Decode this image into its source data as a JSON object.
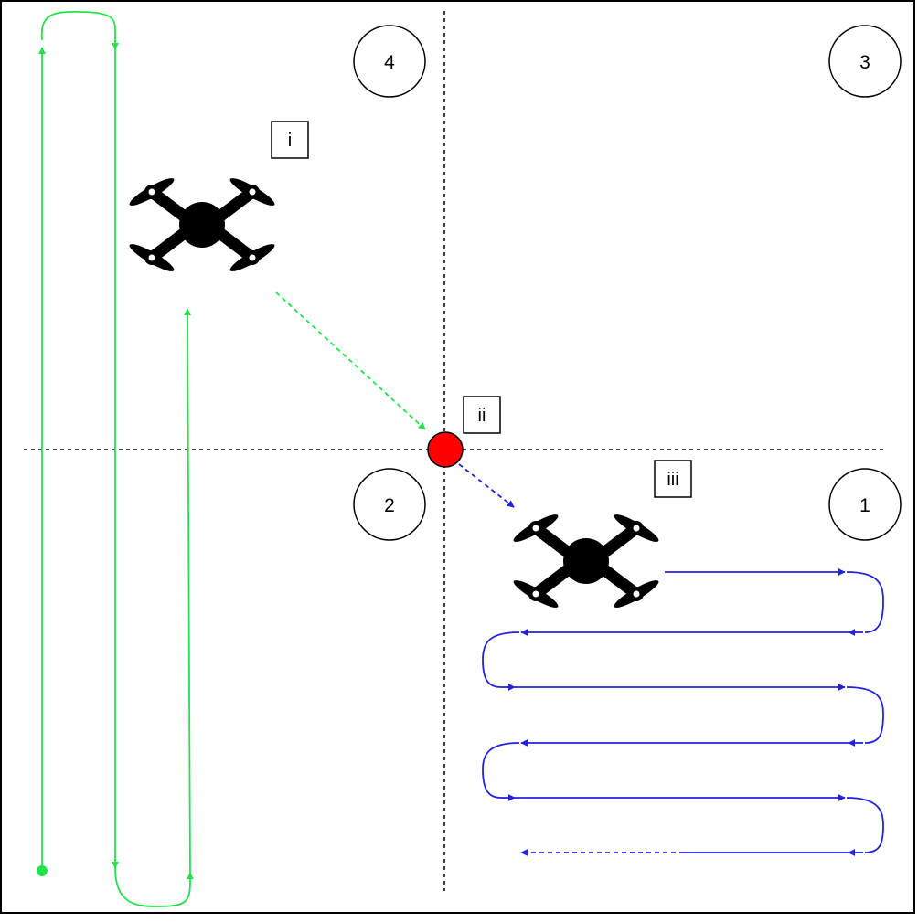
{
  "quadrants": [
    {
      "id": "q1",
      "label": "1"
    },
    {
      "id": "q2",
      "label": "2"
    },
    {
      "id": "q3",
      "label": "3"
    },
    {
      "id": "q4",
      "label": "4"
    }
  ],
  "phases": {
    "i": "i",
    "ii": "ii",
    "iii": "iii"
  },
  "colors": {
    "green_path": "#22e34a",
    "blue_path": "#2222dd",
    "meeting_point": "#ff0000",
    "drone": "#000000"
  },
  "icons": {
    "drone": "quadcopter-drone-icon",
    "meeting_point": "red-dot-icon"
  }
}
